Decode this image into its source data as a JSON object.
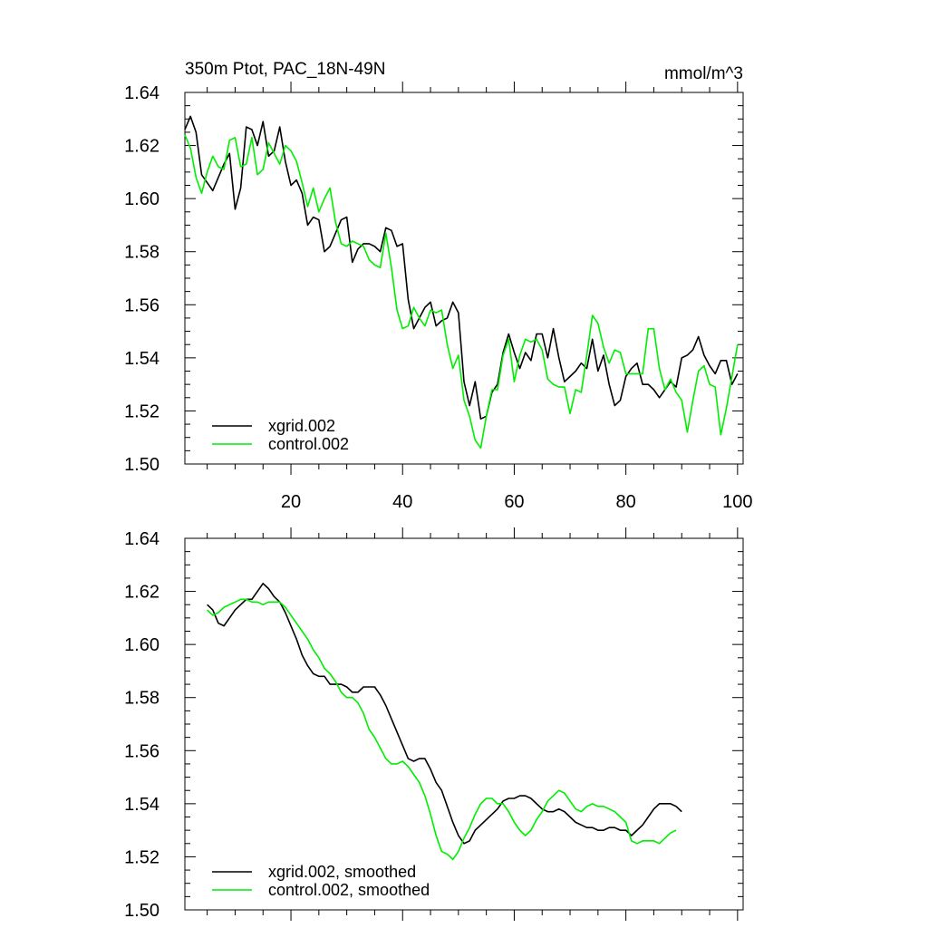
{
  "chart_data": [
    {
      "type": "line",
      "title": "350m Ptot, PAC_18N-49N",
      "units": "mmol/m^3",
      "xlabel": "",
      "ylabel": "",
      "xlim": [
        1,
        101
      ],
      "ylim": [
        1.5,
        1.64
      ],
      "x_ticks": [
        20,
        40,
        60,
        80,
        100
      ],
      "y_ticks": [
        1.5,
        1.52,
        1.54,
        1.56,
        1.58,
        1.6,
        1.62,
        1.64
      ],
      "x_tick_labels": [
        "20",
        "40",
        "60",
        "80",
        "100"
      ],
      "y_tick_labels": [
        "1.50",
        "1.52",
        "1.54",
        "1.56",
        "1.58",
        "1.60",
        "1.62",
        "1.64"
      ],
      "legend_position": "bottom-left",
      "series": [
        {
          "name": "xgrid.002",
          "color": "#000000",
          "x_start": 1,
          "values": [
            1.626,
            1.631,
            1.625,
            1.609,
            1.606,
            1.603,
            1.608,
            1.613,
            1.617,
            1.596,
            1.604,
            1.627,
            1.626,
            1.62,
            1.629,
            1.616,
            1.618,
            1.627,
            1.614,
            1.605,
            1.607,
            1.602,
            1.59,
            1.593,
            1.592,
            1.58,
            1.582,
            1.587,
            1.592,
            1.593,
            1.576,
            1.581,
            1.583,
            1.583,
            1.582,
            1.58,
            1.589,
            1.588,
            1.582,
            1.583,
            1.562,
            1.551,
            1.555,
            1.559,
            1.561,
            1.552,
            1.554,
            1.555,
            1.561,
            1.557,
            1.531,
            1.522,
            1.531,
            1.517,
            1.518,
            1.527,
            1.53,
            1.542,
            1.549,
            1.542,
            1.536,
            1.542,
            1.539,
            1.549,
            1.549,
            1.54,
            1.551,
            1.54,
            1.531,
            1.533,
            1.535,
            1.538,
            1.536,
            1.547,
            1.535,
            1.541,
            1.53,
            1.522,
            1.524,
            1.533,
            1.536,
            1.538,
            1.53,
            1.53,
            1.528,
            1.525,
            1.528,
            1.531,
            1.529,
            1.54,
            1.541,
            1.543,
            1.548,
            1.541,
            1.537,
            1.534,
            1.539,
            1.539,
            1.53,
            1.534
          ]
        },
        {
          "name": "control.002",
          "color": "#00ee00",
          "x_start": 1,
          "values": [
            1.624,
            1.619,
            1.608,
            1.602,
            1.61,
            1.616,
            1.612,
            1.611,
            1.622,
            1.623,
            1.612,
            1.613,
            1.623,
            1.609,
            1.611,
            1.621,
            1.617,
            1.613,
            1.62,
            1.618,
            1.614,
            1.606,
            1.597,
            1.604,
            1.595,
            1.6,
            1.604,
            1.591,
            1.583,
            1.582,
            1.584,
            1.583,
            1.582,
            1.577,
            1.575,
            1.574,
            1.587,
            1.574,
            1.558,
            1.551,
            1.552,
            1.559,
            1.555,
            1.552,
            1.558,
            1.557,
            1.558,
            1.545,
            1.536,
            1.541,
            1.524,
            1.518,
            1.509,
            1.506,
            1.518,
            1.528,
            1.528,
            1.541,
            1.547,
            1.531,
            1.541,
            1.547,
            1.546,
            1.547,
            1.543,
            1.532,
            1.53,
            1.529,
            1.529,
            1.519,
            1.528,
            1.527,
            1.541,
            1.556,
            1.553,
            1.544,
            1.538,
            1.543,
            1.542,
            1.534,
            1.534,
            1.534,
            1.534,
            1.551,
            1.551,
            1.536,
            1.528,
            1.532,
            1.527,
            1.524,
            1.512,
            1.524,
            1.535,
            1.537,
            1.53,
            1.529,
            1.511,
            1.521,
            1.533,
            1.545
          ]
        }
      ]
    },
    {
      "type": "line",
      "title": "",
      "xlabel": "",
      "ylabel": "",
      "xlim": [
        1,
        101
      ],
      "ylim": [
        1.5,
        1.64
      ],
      "x_ticks": [
        20,
        40,
        60,
        80,
        100
      ],
      "y_ticks": [
        1.5,
        1.52,
        1.54,
        1.56,
        1.58,
        1.6,
        1.62,
        1.64
      ],
      "y_tick_labels": [
        "1.50",
        "1.52",
        "1.54",
        "1.56",
        "1.58",
        "1.60",
        "1.62",
        "1.64"
      ],
      "legend_position": "bottom-left",
      "series": [
        {
          "name": "xgrid.002, smoothed",
          "color": "#000000",
          "x_start": 5,
          "values": [
            1.615,
            1.613,
            1.608,
            1.607,
            1.61,
            1.613,
            1.615,
            1.617,
            1.617,
            1.62,
            1.623,
            1.621,
            1.618,
            1.616,
            1.612,
            1.607,
            1.602,
            1.596,
            1.592,
            1.589,
            1.588,
            1.588,
            1.585,
            1.585,
            1.585,
            1.584,
            1.582,
            1.582,
            1.584,
            1.584,
            1.584,
            1.581,
            1.577,
            1.572,
            1.567,
            1.562,
            1.557,
            1.556,
            1.557,
            1.557,
            1.553,
            1.548,
            1.545,
            1.539,
            1.533,
            1.528,
            1.525,
            1.526,
            1.53,
            1.532,
            1.534,
            1.536,
            1.538,
            1.541,
            1.542,
            1.542,
            1.543,
            1.543,
            1.542,
            1.54,
            1.538,
            1.537,
            1.537,
            1.538,
            1.537,
            1.535,
            1.533,
            1.532,
            1.531,
            1.531,
            1.53,
            1.53,
            1.531,
            1.531,
            1.53,
            1.53,
            1.528,
            1.53,
            1.532,
            1.535,
            1.538,
            1.54,
            1.54,
            1.54,
            1.539,
            1.537
          ]
        },
        {
          "name": "control.002, smoothed",
          "color": "#00ee00",
          "x_start": 5,
          "values": [
            1.613,
            1.611,
            1.612,
            1.614,
            1.615,
            1.616,
            1.617,
            1.617,
            1.616,
            1.616,
            1.615,
            1.616,
            1.616,
            1.616,
            1.614,
            1.611,
            1.608,
            1.605,
            1.602,
            1.598,
            1.595,
            1.591,
            1.589,
            1.586,
            1.582,
            1.58,
            1.58,
            1.578,
            1.574,
            1.568,
            1.565,
            1.561,
            1.557,
            1.555,
            1.555,
            1.556,
            1.554,
            1.551,
            1.548,
            1.543,
            1.536,
            1.528,
            1.522,
            1.521,
            1.519,
            1.522,
            1.527,
            1.531,
            1.536,
            1.54,
            1.542,
            1.542,
            1.54,
            1.54,
            1.537,
            1.533,
            1.53,
            1.528,
            1.53,
            1.534,
            1.537,
            1.541,
            1.543,
            1.545,
            1.544,
            1.541,
            1.538,
            1.537,
            1.539,
            1.54,
            1.539,
            1.539,
            1.538,
            1.537,
            1.535,
            1.533,
            1.526,
            1.525,
            1.526,
            1.526,
            1.526,
            1.525,
            1.527,
            1.529,
            1.53
          ]
        }
      ]
    }
  ]
}
